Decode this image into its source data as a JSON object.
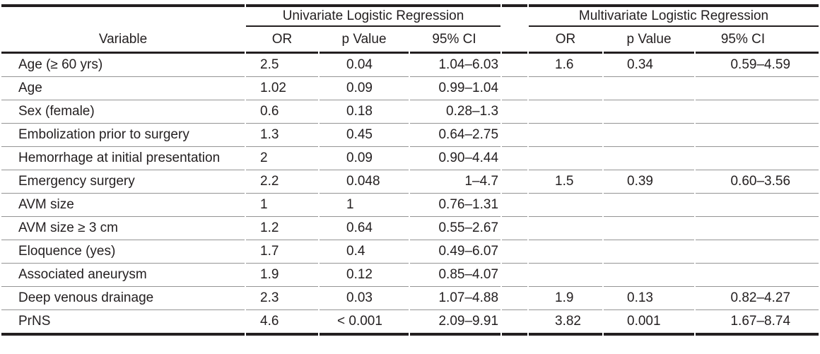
{
  "table": {
    "variable_header": "Variable",
    "groups": [
      {
        "label": "Univariate Logistic Regression"
      },
      {
        "label": "Multivariate Logistic Regression"
      }
    ],
    "sub_headers": {
      "or": "OR",
      "p": "p Value",
      "ci": "95% CI"
    },
    "rows": [
      {
        "variable": "Age (≥ 60 yrs)",
        "uni_or": "2.5",
        "uni_p": "0.04",
        "uni_ci": "1.04–6.03",
        "multi_or": "1.6",
        "multi_p": "0.34",
        "multi_ci": "0.59–4.59"
      },
      {
        "variable": "Age",
        "uni_or": "1.02",
        "uni_p": "0.09",
        "uni_ci": "0.99–1.04",
        "multi_or": "",
        "multi_p": "",
        "multi_ci": ""
      },
      {
        "variable": "Sex (female)",
        "uni_or": "0.6",
        "uni_p": "0.18",
        "uni_ci": "0.28–1.3",
        "multi_or": "",
        "multi_p": "",
        "multi_ci": ""
      },
      {
        "variable": "Embolization prior to surgery",
        "uni_or": "1.3",
        "uni_p": "0.45",
        "uni_ci": "0.64–2.75",
        "multi_or": "",
        "multi_p": "",
        "multi_ci": ""
      },
      {
        "variable": "Hemorrhage at initial presentation",
        "uni_or": "2",
        "uni_p": "0.09",
        "uni_ci": "0.90–4.44",
        "multi_or": "",
        "multi_p": "",
        "multi_ci": ""
      },
      {
        "variable": "Emergency surgery",
        "uni_or": "2.2",
        "uni_p": "0.048",
        "uni_ci": "1–4.7",
        "multi_or": "1.5",
        "multi_p": "0.39",
        "multi_ci": "0.60–3.56"
      },
      {
        "variable": "AVM size",
        "uni_or": "1",
        "uni_p": "1",
        "uni_ci": "0.76–1.31",
        "multi_or": "",
        "multi_p": "",
        "multi_ci": ""
      },
      {
        "variable": "AVM size ≥ 3 cm",
        "uni_or": "1.2",
        "uni_p": "0.64",
        "uni_ci": "0.55–2.67",
        "multi_or": "",
        "multi_p": "",
        "multi_ci": ""
      },
      {
        "variable": "Eloquence (yes)",
        "uni_or": "1.7",
        "uni_p": "0.4",
        "uni_ci": "0.49–6.07",
        "multi_or": "",
        "multi_p": "",
        "multi_ci": ""
      },
      {
        "variable": "Associated aneurysm",
        "uni_or": "1.9",
        "uni_p": "0.12",
        "uni_ci": "0.85–4.07",
        "multi_or": "",
        "multi_p": "",
        "multi_ci": ""
      },
      {
        "variable": "Deep venous drainage",
        "uni_or": "2.3",
        "uni_p": "0.03",
        "uni_ci": "1.07–4.88",
        "multi_or": "1.9",
        "multi_p": "0.13",
        "multi_ci": "0.82–4.27"
      },
      {
        "variable": "PrNS",
        "uni_or": "4.6",
        "uni_p": "< 0.001",
        "uni_ci": "2.09–9.91",
        "multi_or": "3.82",
        "multi_p": "0.001",
        "multi_ci": "1.67–8.74"
      }
    ]
  },
  "colors": {
    "text": "#231f20",
    "heavy_rule": "#231f20",
    "light_rule": "#949494",
    "background": "#ffffff"
  }
}
